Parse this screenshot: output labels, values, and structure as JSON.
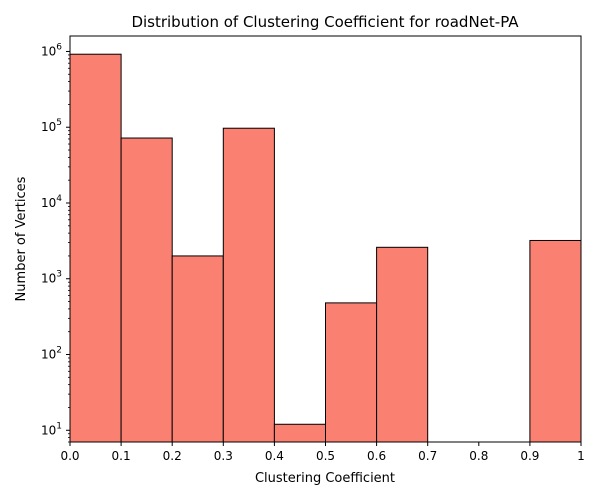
{
  "chart_data": {
    "type": "bar",
    "title": "Distribution of Clustering Coefficient for roadNet-PA",
    "xlabel": "Clustering Coefficient",
    "ylabel": "Number of Vertices",
    "xlim": [
      0,
      1
    ],
    "ylim": [
      7,
      1600000
    ],
    "yscale": "log",
    "grid": false,
    "bar_color": "#fa8072",
    "edge_color": "#000000",
    "bins": [
      {
        "x0": 0.0,
        "x1": 0.1,
        "value": 920000
      },
      {
        "x0": 0.1,
        "x1": 0.2,
        "value": 72000
      },
      {
        "x0": 0.2,
        "x1": 0.3,
        "value": 2000
      },
      {
        "x0": 0.3,
        "x1": 0.4,
        "value": 97000
      },
      {
        "x0": 0.4,
        "x1": 0.5,
        "value": 12
      },
      {
        "x0": 0.5,
        "x1": 0.6,
        "value": 480
      },
      {
        "x0": 0.6,
        "x1": 0.7,
        "value": 2600
      },
      {
        "x0": 0.7,
        "x1": 0.8,
        "value": 0
      },
      {
        "x0": 0.8,
        "x1": 0.9,
        "value": 0
      },
      {
        "x0": 0.9,
        "x1": 1.0,
        "value": 3200
      }
    ],
    "x_ticks": [
      {
        "value": 0.0,
        "label": "0.0"
      },
      {
        "value": 0.1,
        "label": "0.1"
      },
      {
        "value": 0.2,
        "label": "0.2"
      },
      {
        "value": 0.3,
        "label": "0.3"
      },
      {
        "value": 0.4,
        "label": "0.4"
      },
      {
        "value": 0.5,
        "label": "0.5"
      },
      {
        "value": 0.6,
        "label": "0.6"
      },
      {
        "value": 0.7,
        "label": "0.7"
      },
      {
        "value": 0.8,
        "label": "0.8"
      },
      {
        "value": 0.9,
        "label": "0.9"
      },
      {
        "value": 1.0,
        "label": "1"
      }
    ],
    "y_ticks": [
      {
        "value": 10,
        "base": "10",
        "exp": "1"
      },
      {
        "value": 100,
        "base": "10",
        "exp": "2"
      },
      {
        "value": 1000,
        "base": "10",
        "exp": "3"
      },
      {
        "value": 10000,
        "base": "10",
        "exp": "4"
      },
      {
        "value": 100000,
        "base": "10",
        "exp": "5"
      },
      {
        "value": 1000000,
        "base": "10",
        "exp": "6"
      }
    ]
  }
}
